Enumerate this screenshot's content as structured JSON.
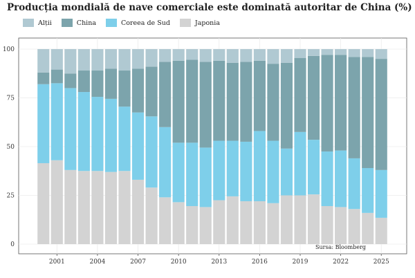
{
  "chart_data": {
    "type": "bar",
    "stacked": true,
    "title": "Producția mondială de nave comerciale este dominată autoritar de China (%)",
    "xlabel": "",
    "ylabel": "",
    "x": [
      2000,
      2001,
      2002,
      2003,
      2004,
      2005,
      2006,
      2007,
      2008,
      2009,
      2010,
      2011,
      2012,
      2013,
      2014,
      2015,
      2016,
      2017,
      2018,
      2019,
      2020,
      2021,
      2022,
      2023,
      2024,
      2025
    ],
    "x_tick_labels": [
      "2001",
      "2004",
      "2007",
      "2010",
      "2013",
      "2016",
      "2019",
      "2022",
      "2025"
    ],
    "x_tick_values": [
      2001,
      2004,
      2007,
      2010,
      2013,
      2016,
      2019,
      2022,
      2025
    ],
    "y_tick_labels": [
      "0",
      "25",
      "50",
      "75",
      "100"
    ],
    "y_tick_values": [
      0,
      25,
      50,
      75,
      100
    ],
    "ylim": [
      0,
      100
    ],
    "grid": true,
    "legend_position": "top-left",
    "legend_order": [
      "Alții",
      "China",
      "Coreea de Sud",
      "Japonia"
    ],
    "series": [
      {
        "name": "Japonia",
        "color": "#d3d3d3",
        "values": [
          41.5,
          43,
          38,
          37.5,
          37.5,
          37,
          37.5,
          33,
          29,
          24,
          21.5,
          19.5,
          19,
          22.5,
          24.5,
          22,
          22,
          21,
          25,
          25,
          25.5,
          19.5,
          19,
          18,
          16,
          13.5
        ]
      },
      {
        "name": "Coreea de Sud",
        "color": "#7ecfea",
        "values": [
          40.5,
          39.5,
          42,
          40.5,
          38,
          37.5,
          33,
          34.5,
          36.5,
          36,
          30.5,
          32.5,
          30.5,
          30.5,
          28.5,
          30.5,
          36,
          32,
          24,
          32.5,
          28,
          28,
          29,
          26,
          23,
          24.5
        ]
      },
      {
        "name": "China",
        "color": "#7ca4ac",
        "values": [
          6,
          7,
          7.5,
          11,
          13.5,
          15.5,
          18.5,
          22.5,
          25.5,
          33.5,
          42,
          42.5,
          44,
          41,
          40,
          41,
          36,
          39.5,
          44,
          38,
          43,
          49.5,
          49,
          52,
          57,
          57
        ]
      },
      {
        "name": "Alții",
        "color": "#b0c9d2",
        "values": [
          12,
          10.5,
          12.5,
          11,
          11,
          10,
          11,
          10,
          9,
          6.5,
          6,
          5.5,
          6.5,
          6,
          7,
          6.5,
          6,
          7.5,
          7,
          4.5,
          3.5,
          3,
          3,
          4,
          4,
          5
        ]
      }
    ],
    "source": "Sursa: Bloomberg"
  }
}
